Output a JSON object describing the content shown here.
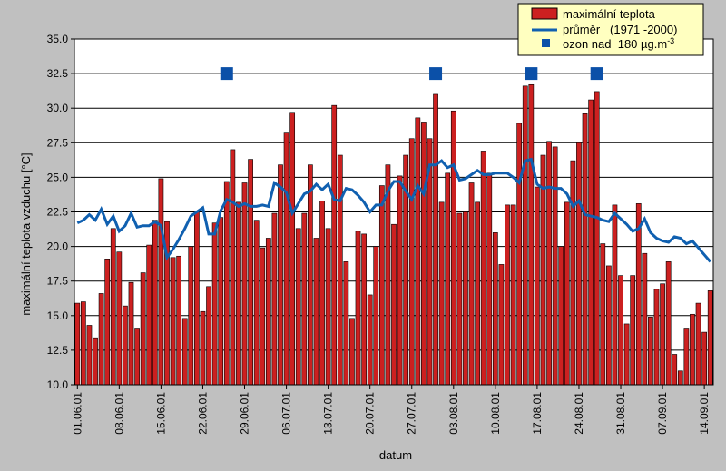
{
  "chart_data": {
    "type": "bar",
    "xlabel": "datum",
    "ylabel": "maximální teplota vzduchu [°C]",
    "ylim": [
      10.0,
      35.0
    ],
    "ytick_step": 2.5,
    "grid": true,
    "legend_placement": "top-right",
    "x_ticks": [
      "01.06.01",
      "08.06.01",
      "15.06.01",
      "22.06.01",
      "29.06.01",
      "06.07.01",
      "13.07.01",
      "20.07.01",
      "27.07.01",
      "03.08.01",
      "10.08.01",
      "17.08.01",
      "24.08.01",
      "31.08.01",
      "07.09.01",
      "14.09.01"
    ],
    "legend": {
      "bar_label": "maximální teplota",
      "line_label": "průměr   (1971 -2000)",
      "marker_label": "ozon nad  180 µg.m",
      "marker_label_sup": "-3"
    },
    "colors": {
      "bar": "#cc2020",
      "line": "#1060b0",
      "marker": "#0b50a8",
      "plot_bg": "#ffffff",
      "legend_bg": "#ffffc0"
    },
    "categories": [
      "01.06.01",
      "02.06.01",
      "03.06.01",
      "04.06.01",
      "05.06.01",
      "06.06.01",
      "07.06.01",
      "08.06.01",
      "09.06.01",
      "10.06.01",
      "11.06.01",
      "12.06.01",
      "13.06.01",
      "14.06.01",
      "15.06.01",
      "16.06.01",
      "17.06.01",
      "18.06.01",
      "19.06.01",
      "20.06.01",
      "21.06.01",
      "22.06.01",
      "23.06.01",
      "24.06.01",
      "25.06.01",
      "26.06.01",
      "27.06.01",
      "28.06.01",
      "29.06.01",
      "30.06.01",
      "01.07.01",
      "02.07.01",
      "03.07.01",
      "04.07.01",
      "05.07.01",
      "06.07.01",
      "07.07.01",
      "08.07.01",
      "09.07.01",
      "10.07.01",
      "11.07.01",
      "12.07.01",
      "13.07.01",
      "14.07.01",
      "15.07.01",
      "16.07.01",
      "17.07.01",
      "18.07.01",
      "19.07.01",
      "20.07.01",
      "21.07.01",
      "22.07.01",
      "23.07.01",
      "24.07.01",
      "25.07.01",
      "26.07.01",
      "27.07.01",
      "28.07.01",
      "29.07.01",
      "30.07.01",
      "31.07.01",
      "01.08.01",
      "02.08.01",
      "03.08.01",
      "04.08.01",
      "05.08.01",
      "06.08.01",
      "07.08.01",
      "08.08.01",
      "09.08.01",
      "10.08.01",
      "11.08.01",
      "12.08.01",
      "13.08.01",
      "14.08.01",
      "15.08.01",
      "16.08.01",
      "17.08.01",
      "18.08.01",
      "19.08.01",
      "20.08.01",
      "21.08.01",
      "22.08.01",
      "23.08.01",
      "24.08.01",
      "25.08.01",
      "26.08.01",
      "27.08.01",
      "28.08.01",
      "29.08.01",
      "30.08.01",
      "31.08.01",
      "01.09.01",
      "02.09.01",
      "03.09.01",
      "04.09.01",
      "05.09.01",
      "06.09.01",
      "07.09.01",
      "08.09.01",
      "09.09.01",
      "10.09.01",
      "11.09.01",
      "12.09.01",
      "13.09.01",
      "14.09.01",
      "15.09.01"
    ],
    "series": [
      {
        "name": "maximální teplota",
        "kind": "bar",
        "values": [
          15.9,
          16.0,
          14.3,
          13.4,
          16.6,
          19.1,
          21.3,
          19.6,
          15.7,
          17.4,
          14.1,
          18.1,
          20.1,
          21.9,
          24.9,
          21.8,
          19.2,
          19.3,
          14.8,
          20.0,
          22.5,
          15.3,
          17.1,
          21.7,
          22.1,
          24.7,
          27.0,
          23.2,
          24.6,
          26.3,
          21.9,
          19.9,
          20.6,
          22.4,
          25.9,
          28.2,
          29.7,
          21.3,
          22.4,
          25.9,
          20.6,
          23.3,
          21.3,
          30.2,
          26.6,
          18.9,
          14.8,
          21.1,
          20.9,
          16.5,
          20.0,
          24.4,
          25.9,
          21.6,
          25.1,
          26.6,
          27.8,
          29.3,
          29.0,
          27.8,
          31.0,
          23.2,
          25.3,
          29.8,
          22.4,
          22.5,
          24.6,
          23.2,
          26.9,
          25.3,
          21.0,
          18.7,
          23.0,
          23.0,
          28.9,
          31.6,
          31.7,
          24.3,
          26.6,
          27.6,
          27.2,
          20.0,
          23.2,
          26.2,
          27.5,
          29.6,
          30.6,
          31.2,
          20.2,
          18.6,
          23.0,
          17.9,
          14.4,
          17.9,
          23.1,
          19.5,
          14.9,
          16.9,
          17.3,
          18.9,
          12.2,
          11.0,
          14.1,
          15.1,
          15.9,
          13.8,
          16.8
        ]
      },
      {
        "name": "průměr   (1971 -2000)",
        "kind": "line",
        "values": [
          21.7,
          21.9,
          22.3,
          21.9,
          22.7,
          21.6,
          22.2,
          21.1,
          21.5,
          22.4,
          21.4,
          21.5,
          21.5,
          21.8,
          21.5,
          19.2,
          19.8,
          20.5,
          21.3,
          22.2,
          22.5,
          22.8,
          20.9,
          20.9,
          22.6,
          23.4,
          23.2,
          22.9,
          23.1,
          22.9,
          22.9,
          23.0,
          22.9,
          24.6,
          24.3,
          23.9,
          22.4,
          23.1,
          23.8,
          24.0,
          24.5,
          24.1,
          24.5,
          23.4,
          23.3,
          24.2,
          24.1,
          23.7,
          23.2,
          22.5,
          23.0,
          23.0,
          24.0,
          24.7,
          24.7,
          24.0,
          23.4,
          24.4,
          23.8,
          25.9,
          25.9,
          26.2,
          25.7,
          25.9,
          24.8,
          24.9,
          25.2,
          25.5,
          25.2,
          25.2,
          25.3,
          25.3,
          25.3,
          25.0,
          24.6,
          26.2,
          26.3,
          24.5,
          24.2,
          24.3,
          24.2,
          24.2,
          23.8,
          22.9,
          23.3,
          22.3,
          22.2,
          22.1,
          21.9,
          21.8,
          22.4,
          22.0,
          21.6,
          21.1,
          21.3,
          22.0,
          21.0,
          20.6,
          20.4,
          20.3,
          20.7,
          20.6,
          20.2,
          20.4,
          19.9,
          19.4,
          18.9
        ]
      },
      {
        "name": "ozon nad  180 µg.m-3",
        "kind": "marker",
        "points": [
          {
            "index": 25,
            "value": 32.5
          },
          {
            "index": 60,
            "value": 32.5
          },
          {
            "index": 76,
            "value": 32.5
          },
          {
            "index": 87,
            "value": 32.5
          }
        ]
      }
    ]
  }
}
